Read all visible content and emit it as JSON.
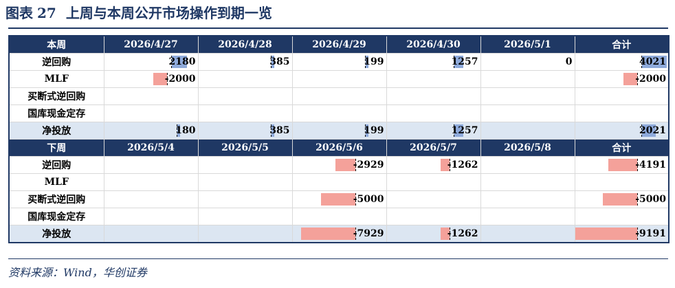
{
  "figure": {
    "label": "图表",
    "number": "27",
    "title": "上周与本周公开市场操作到期一览"
  },
  "source": "资料来源：Wind，华创证券",
  "colors": {
    "header": "#1f3864",
    "net_row": "#dce6f2",
    "positive_bar": "#8eaadb",
    "negative_bar": "#f4a19a"
  },
  "this_week": {
    "label": "本周",
    "columns": [
      "2026/4/27",
      "2026/4/28",
      "2026/4/29",
      "2026/4/30",
      "2026/5/1",
      "合计"
    ],
    "rows": [
      {
        "label": "逆回购",
        "values": [
          "2180",
          "385",
          "199",
          "1257",
          "0",
          "4021"
        ],
        "net": false
      },
      {
        "label": "MLF",
        "values": [
          "-2000",
          "",
          "",
          "",
          "",
          "-2000"
        ],
        "net": false
      },
      {
        "label": "买断式逆回购",
        "values": [
          "",
          "",
          "",
          "",
          "",
          ""
        ],
        "net": false
      },
      {
        "label": "国库现金定存",
        "values": [
          "",
          "",
          "",
          "",
          "",
          ""
        ],
        "net": false
      },
      {
        "label": "净投放",
        "values": [
          "180",
          "385",
          "199",
          "1257",
          "",
          "2021"
        ],
        "net": true
      }
    ]
  },
  "next_week": {
    "label": "下周",
    "columns": [
      "2026/5/4",
      "2026/5/5",
      "2026/5/6",
      "2026/5/7",
      "2026/5/8",
      "合计"
    ],
    "rows": [
      {
        "label": "逆回购",
        "values": [
          "",
          "",
          "-2929",
          "-1262",
          "",
          "-4191"
        ],
        "net": false
      },
      {
        "label": "MLF",
        "values": [
          "",
          "",
          "",
          "",
          "",
          ""
        ],
        "net": false
      },
      {
        "label": "买断式逆回购",
        "values": [
          "",
          "",
          "-5000",
          "",
          "",
          "-5000"
        ],
        "net": false
      },
      {
        "label": "国库现金定存",
        "values": [
          "",
          "",
          "",
          "",
          "",
          ""
        ],
        "net": false
      },
      {
        "label": "净投放",
        "values": [
          "",
          "",
          "-7929",
          "-1262",
          "",
          "-9191"
        ],
        "net": true
      }
    ]
  }
}
